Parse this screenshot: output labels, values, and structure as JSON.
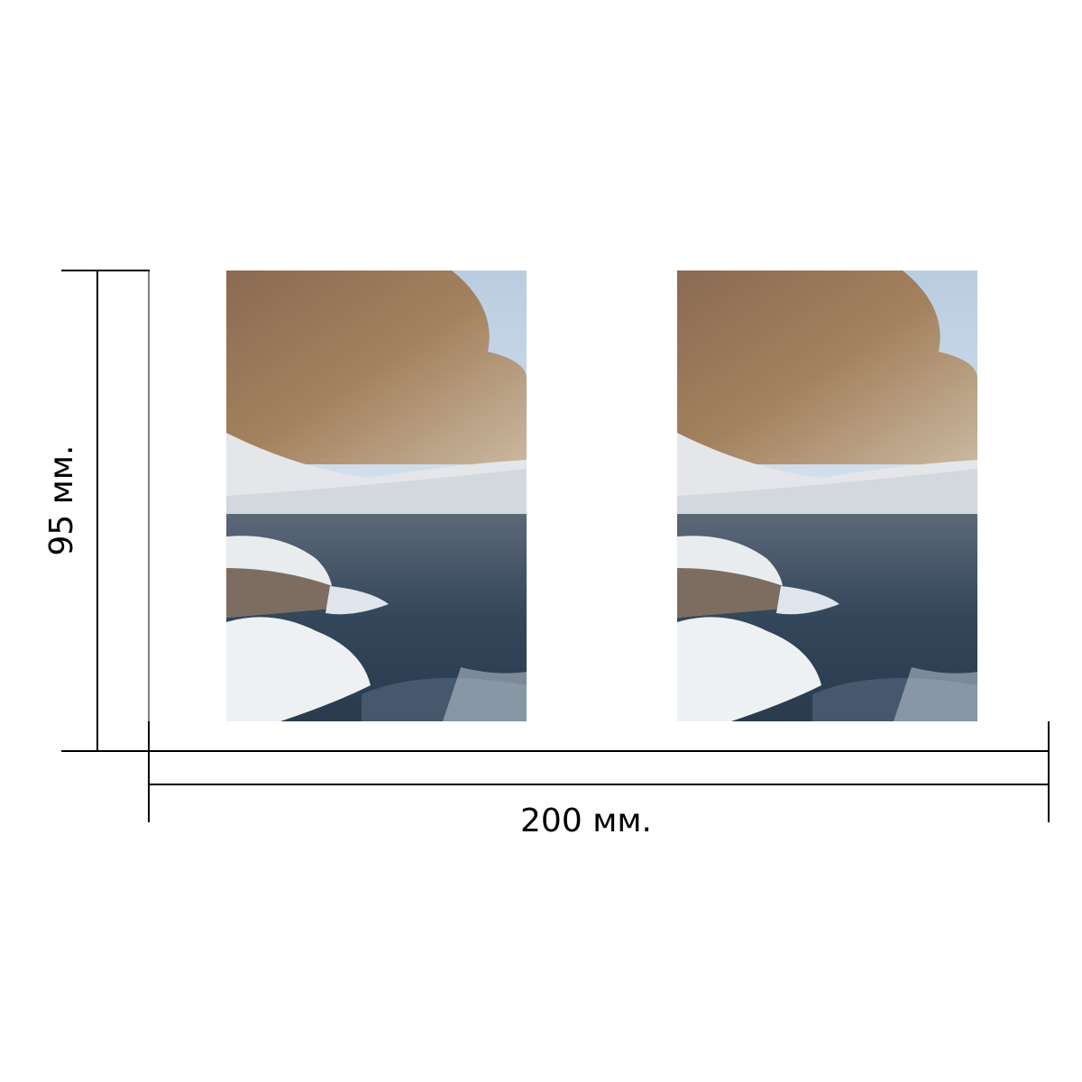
{
  "dimensions": {
    "height": "95 мм.",
    "width": "200 мм."
  }
}
